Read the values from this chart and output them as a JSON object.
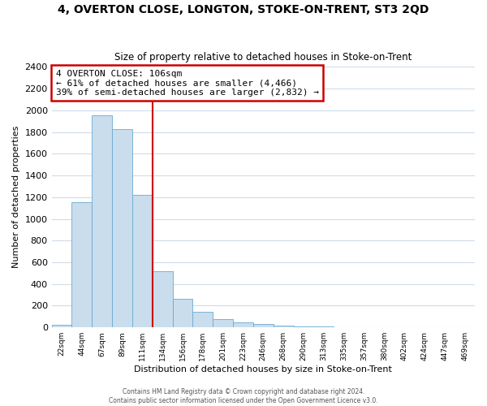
{
  "title": "4, OVERTON CLOSE, LONGTON, STOKE-ON-TRENT, ST3 2QD",
  "subtitle": "Size of property relative to detached houses in Stoke-on-Trent",
  "xlabel": "Distribution of detached houses by size in Stoke-on-Trent",
  "ylabel": "Number of detached properties",
  "bin_labels": [
    "22sqm",
    "44sqm",
    "67sqm",
    "89sqm",
    "111sqm",
    "134sqm",
    "156sqm",
    "178sqm",
    "201sqm",
    "223sqm",
    "246sqm",
    "268sqm",
    "290sqm",
    "313sqm",
    "335sqm",
    "357sqm",
    "380sqm",
    "402sqm",
    "424sqm",
    "447sqm",
    "469sqm"
  ],
  "bar_values": [
    25,
    1155,
    1950,
    1830,
    1220,
    520,
    265,
    145,
    80,
    47,
    35,
    18,
    10,
    8,
    5,
    3,
    2,
    2,
    1,
    1,
    0
  ],
  "bar_color": "#c9dded",
  "bar_edge_color": "#6aabd2",
  "reference_line_color": "#cc0000",
  "annotation_title": "4 OVERTON CLOSE: 106sqm",
  "annotation_line1": "← 61% of detached houses are smaller (4,466)",
  "annotation_line2": "39% of semi-detached houses are larger (2,832) →",
  "annotation_box_color": "#cc0000",
  "ylim": [
    0,
    2400
  ],
  "yticks": [
    0,
    200,
    400,
    600,
    800,
    1000,
    1200,
    1400,
    1600,
    1800,
    2000,
    2200,
    2400
  ],
  "footer_line1": "Contains HM Land Registry data © Crown copyright and database right 2024.",
  "footer_line2": "Contains public sector information licensed under the Open Government Licence v3.0.",
  "bg_color": "#ffffff",
  "plot_bg_color": "#ffffff",
  "grid_color": "#d0dce8"
}
